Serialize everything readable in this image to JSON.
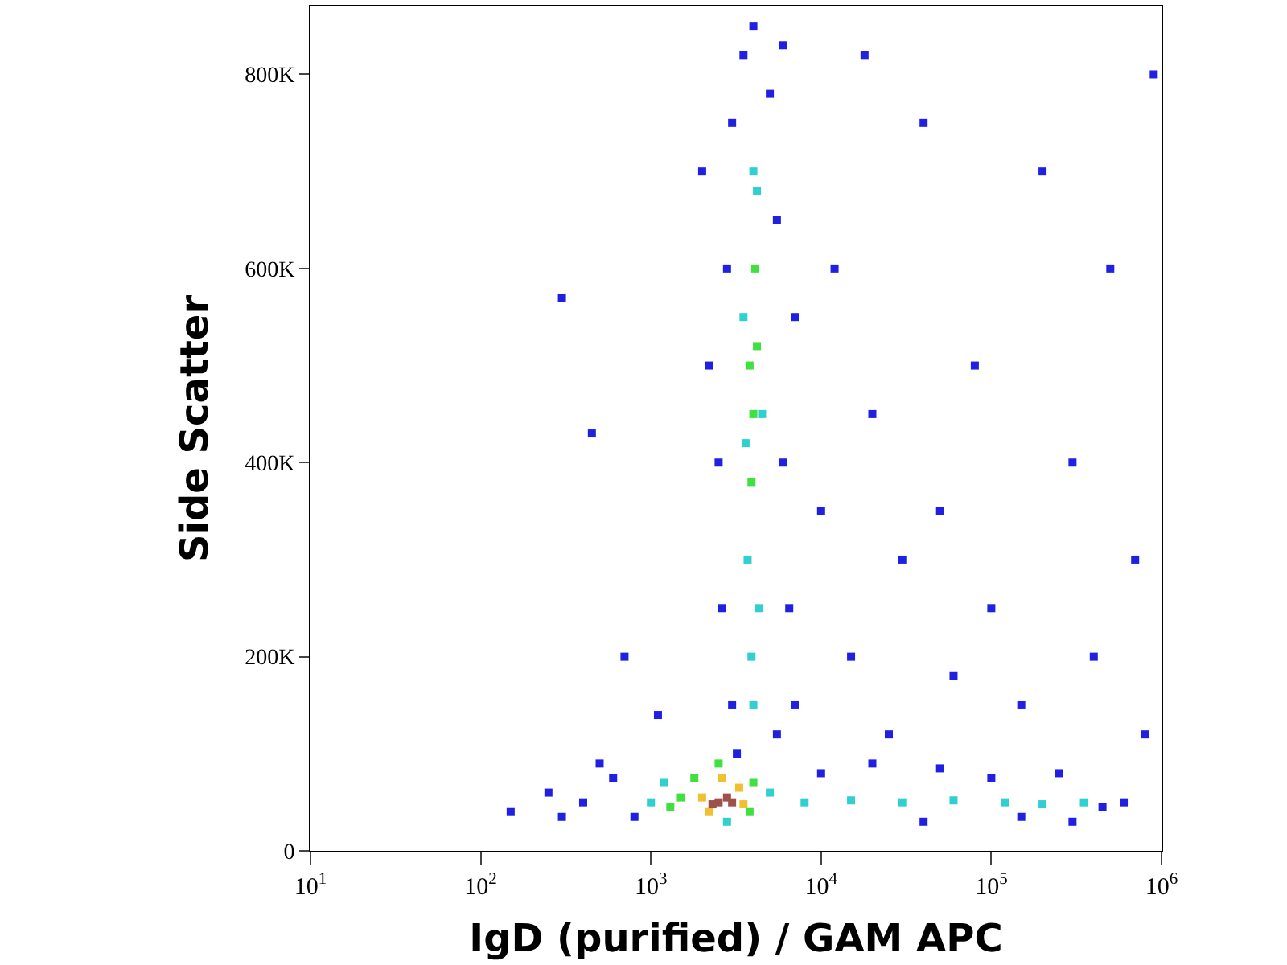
{
  "chart_data": {
    "type": "scatter",
    "xlabel": "IgD (purified) / GAM APC",
    "ylabel": "Side Scatter",
    "log": "x",
    "marker": "square",
    "xlim": [
      10,
      1000000
    ],
    "ylim": [
      0,
      870000
    ],
    "xticks": [
      {
        "value": 10,
        "label": "10$^{1}$"
      },
      {
        "value": 100,
        "label": "10$^{2}$"
      },
      {
        "value": 1000,
        "label": "10$^{3}$"
      },
      {
        "value": 10000,
        "label": "10$^{4}$"
      },
      {
        "value": 100000,
        "label": "10$^{5}$"
      },
      {
        "value": 1000000,
        "label": "10$^{6}$"
      }
    ],
    "yticks": [
      0,
      {
        "value": 200000,
        "label": "200K"
      },
      {
        "value": 400000,
        "label": "400K"
      },
      {
        "value": 600000,
        "label": "600K"
      },
      {
        "value": 800000,
        "label": "800K"
      }
    ],
    "x": [
      150,
      250,
      400,
      600,
      800,
      500,
      300,
      300,
      450,
      700,
      1100,
      1000,
      5000,
      1200,
      2800,
      8000,
      15000,
      30000,
      60000,
      120000,
      200000,
      350000,
      10000,
      20000,
      50000,
      100000,
      250000,
      450000,
      600000,
      40000,
      150000,
      300000,
      2500,
      6000,
      2800,
      5500,
      3000,
      5000,
      4000,
      3500,
      2600,
      6500,
      3000,
      7000,
      2200,
      7000,
      2000,
      6000,
      3200,
      5500,
      12000,
      20000,
      30000,
      15000,
      50000,
      80000,
      100000,
      200000,
      300000,
      500000,
      700000,
      40000,
      150000,
      25000,
      10000,
      60000,
      400000,
      800000,
      900000,
      18000,
      3700,
      4300,
      3900,
      4000,
      4200,
      3600,
      4500,
      4000,
      3500,
      4000,
      4200,
      3900,
      4100,
      3800,
      1500,
      1800,
      4000,
      3800,
      1300,
      2500,
      2000,
      3300,
      2600,
      2200,
      3500,
      2500,
      2800,
      2300,
      3000
    ],
    "values": [
      40000,
      60000,
      50000,
      75000,
      35000,
      90000,
      35000,
      570000,
      430000,
      200000,
      140000,
      50000,
      60000,
      70000,
      30000,
      50000,
      52000,
      50000,
      52000,
      50000,
      48000,
      50000,
      80000,
      90000,
      85000,
      75000,
      80000,
      45000,
      50000,
      30000,
      35000,
      30000,
      400000,
      400000,
      600000,
      650000,
      750000,
      780000,
      850000,
      820000,
      250000,
      250000,
      150000,
      150000,
      500000,
      550000,
      700000,
      830000,
      100000,
      120000,
      600000,
      450000,
      300000,
      200000,
      350000,
      500000,
      250000,
      700000,
      400000,
      600000,
      300000,
      750000,
      150000,
      120000,
      350000,
      180000,
      200000,
      120000,
      800000,
      820000,
      300000,
      250000,
      200000,
      700000,
      680000,
      420000,
      450000,
      150000,
      550000,
      450000,
      520000,
      380000,
      600000,
      500000,
      55000,
      75000,
      70000,
      40000,
      45000,
      90000,
      55000,
      65000,
      75000,
      40000,
      48000,
      50000,
      55000,
      48000,
      50000
    ],
    "colors": [
      "#2020e0",
      "#2020e0",
      "#2020e0",
      "#2020e0",
      "#2020e0",
      "#2020e0",
      "#2020e0",
      "#2020e0",
      "#2020e0",
      "#2020e0",
      "#2020e0",
      "#30d0d0",
      "#30d0d0",
      "#30d0d0",
      "#30d0d0",
      "#30d0d0",
      "#30d0d0",
      "#30d0d0",
      "#30d0d0",
      "#30d0d0",
      "#30d0d0",
      "#30d0d0",
      "#2020e0",
      "#2020e0",
      "#2020e0",
      "#2020e0",
      "#2020e0",
      "#2020e0",
      "#2020e0",
      "#2020e0",
      "#2020e0",
      "#2020e0",
      "#2020e0",
      "#2020e0",
      "#2020e0",
      "#2020e0",
      "#2020e0",
      "#2020e0",
      "#2020e0",
      "#2020e0",
      "#2020e0",
      "#2020e0",
      "#2020e0",
      "#2020e0",
      "#2020e0",
      "#2020e0",
      "#2020e0",
      "#2020e0",
      "#2020e0",
      "#2020e0",
      "#2020e0",
      "#2020e0",
      "#2020e0",
      "#2020e0",
      "#2020e0",
      "#2020e0",
      "#2020e0",
      "#2020e0",
      "#2020e0",
      "#2020e0",
      "#2020e0",
      "#2020e0",
      "#2020e0",
      "#2020e0",
      "#2020e0",
      "#2020e0",
      "#2020e0",
      "#2020e0",
      "#2020e0",
      "#2020e0",
      "#30d0d0",
      "#30d0d0",
      "#30d0d0",
      "#30d0d0",
      "#30d0d0",
      "#30d0d0",
      "#30d0d0",
      "#30d0d0",
      "#30d0d0",
      "#40e040",
      "#40e040",
      "#40e040",
      "#40e040",
      "#40e040",
      "#40e040",
      "#40e040",
      "#40e040",
      "#40e040",
      "#40e040",
      "#40e040",
      "#f0c030",
      "#f0c030",
      "#f0c030",
      "#f0c030",
      "#f0c030",
      "#a0504a",
      "#a0504a",
      "#a0504a",
      "#a0504a"
    ]
  }
}
